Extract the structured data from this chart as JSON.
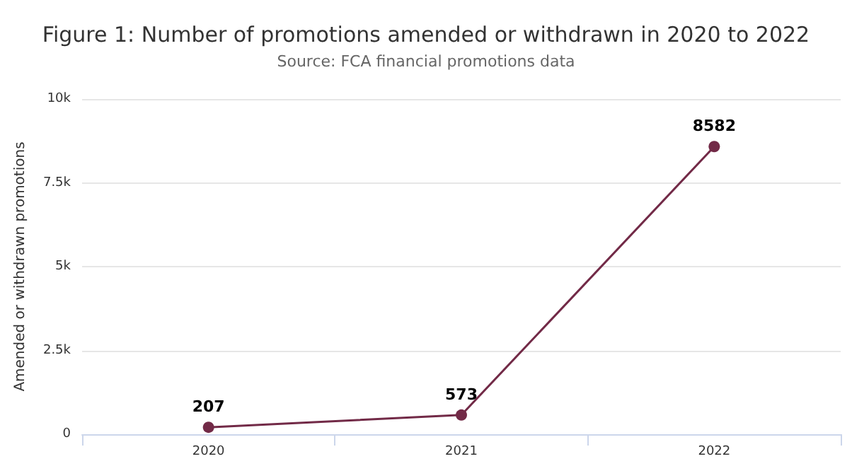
{
  "chart_data": {
    "type": "line",
    "title": "Figure 1: Number of promotions amended or withdrawn in 2020 to 2022",
    "subtitle": "Source: FCA financial promotions data",
    "ylabel": "Amended or withdrawn promotions",
    "categories": [
      "2020",
      "2021",
      "2022"
    ],
    "series": [
      {
        "color": "#722a47",
        "values": [
          207,
          573,
          8582
        ]
      }
    ],
    "ylim": [
      0,
      10000
    ],
    "yticks": [
      0,
      {
        "value": 2500,
        "label": "2.5k"
      },
      {
        "value": 5000,
        "label": "5k"
      },
      {
        "value": 7500,
        "label": "7.5k"
      },
      {
        "value": 10000,
        "label": "10k"
      }
    ],
    "grid": "y",
    "marker": "circle",
    "data_labels": true
  }
}
